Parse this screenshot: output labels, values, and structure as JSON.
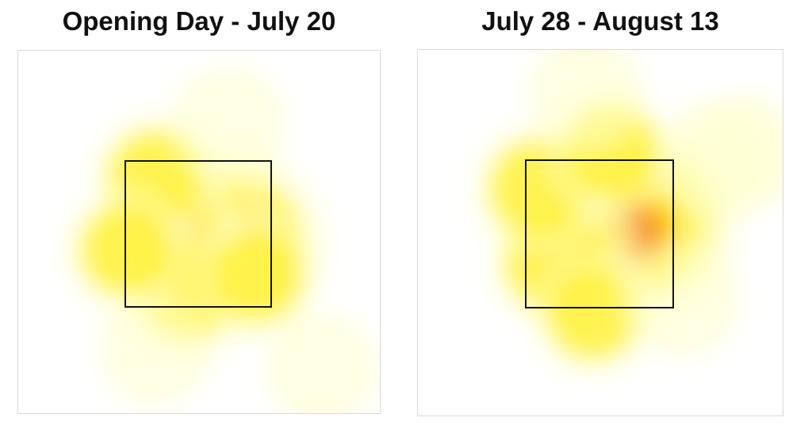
{
  "chart_data": [
    {
      "type": "heatmap",
      "title": "Opening Day - July 20",
      "strike_zone": true,
      "colors": [
        "#ffffcc",
        "#fff13a",
        "#ffd21f",
        "#f58a1f",
        "#d9231a",
        "#6b0a0a",
        "#000000"
      ],
      "blobs": [
        {
          "x": 0.59,
          "y": 0.53,
          "intensity": 1.0
        },
        {
          "x": 0.5,
          "y": 0.53,
          "intensity": 0.75
        },
        {
          "x": 0.46,
          "y": 0.58,
          "intensity": 0.45
        },
        {
          "x": 0.42,
          "y": 0.5,
          "intensity": 0.4
        },
        {
          "x": 0.47,
          "y": 0.66,
          "intensity": 0.3
        },
        {
          "x": 0.38,
          "y": 0.35,
          "intensity": 0.25
        },
        {
          "x": 0.3,
          "y": 0.55,
          "intensity": 0.22
        },
        {
          "x": 0.66,
          "y": 0.62,
          "intensity": 0.22
        },
        {
          "x": 0.58,
          "y": 0.2,
          "intensity": 0.12
        },
        {
          "x": 0.38,
          "y": 0.82,
          "intensity": 0.12
        },
        {
          "x": 0.84,
          "y": 0.88,
          "intensity": 0.08
        }
      ]
    },
    {
      "type": "heatmap",
      "title": "July 28 - August 13",
      "strike_zone": true,
      "colors": [
        "#ffffcc",
        "#fff13a",
        "#ffd21f",
        "#f58a1f",
        "#d9231a",
        "#6b0a0a",
        "#000000"
      ],
      "blobs": [
        {
          "x": 0.62,
          "y": 0.47,
          "intensity": 1.0
        },
        {
          "x": 0.6,
          "y": 0.5,
          "intensity": 0.55
        },
        {
          "x": 0.42,
          "y": 0.55,
          "intensity": 0.4
        },
        {
          "x": 0.38,
          "y": 0.58,
          "intensity": 0.35
        },
        {
          "x": 0.33,
          "y": 0.38,
          "intensity": 0.3
        },
        {
          "x": 0.53,
          "y": 0.28,
          "intensity": 0.25
        },
        {
          "x": 0.82,
          "y": 0.3,
          "intensity": 0.18
        },
        {
          "x": 0.9,
          "y": 0.28,
          "intensity": 0.12
        },
        {
          "x": 0.48,
          "y": 0.72,
          "intensity": 0.22
        },
        {
          "x": 0.72,
          "y": 0.68,
          "intensity": 0.15
        },
        {
          "x": 0.46,
          "y": 0.12,
          "intensity": 0.12
        }
      ]
    }
  ]
}
